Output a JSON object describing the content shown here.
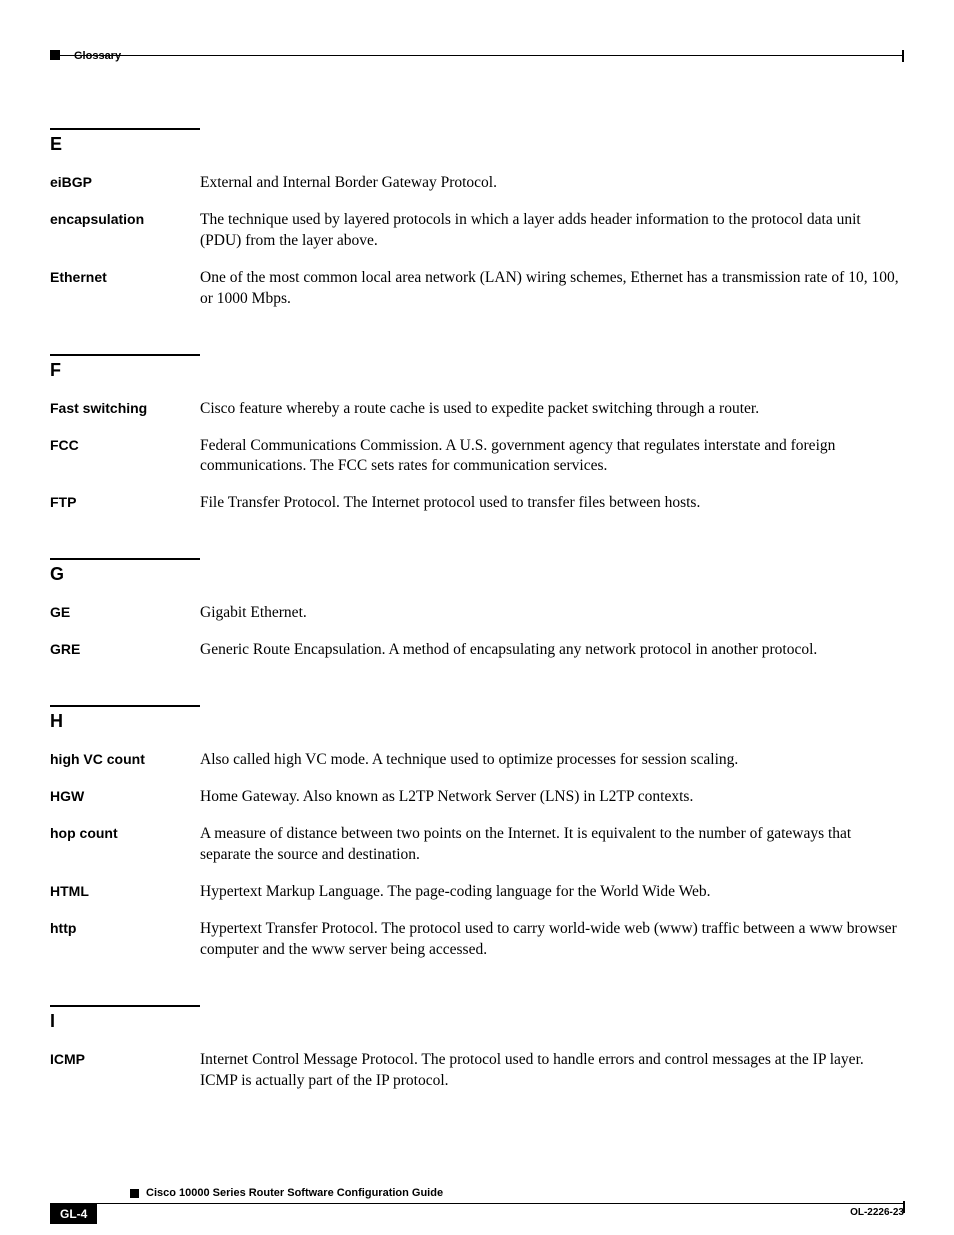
{
  "header": {
    "title": "Glossary"
  },
  "footer": {
    "doc_title": "Cisco 10000 Series Router Software Configuration Guide",
    "page_num": "GL-4",
    "doc_id": "OL-2226-23"
  },
  "sections": [
    {
      "letter": "E",
      "entries": [
        {
          "term": "eiBGP",
          "def": "External and Internal Border Gateway Protocol."
        },
        {
          "term": "encapsulation",
          "def": "The technique used by layered protocols in which a layer adds header information to the protocol data unit (PDU) from the layer above."
        },
        {
          "term": "Ethernet",
          "def": "One of the most common local area network (LAN) wiring schemes, Ethernet has a transmission rate of 10, 100, or 1000 Mbps."
        }
      ]
    },
    {
      "letter": "F",
      "entries": [
        {
          "term": "Fast switching",
          "def": "Cisco feature whereby a route cache is used to expedite packet switching through a router."
        },
        {
          "term": "FCC",
          "def": "Federal Communications Commission. A U.S. government agency that regulates interstate and foreign communications. The FCC sets rates for communication services."
        },
        {
          "term": "FTP",
          "def": "File Transfer Protocol. The Internet protocol used to transfer files between hosts."
        }
      ]
    },
    {
      "letter": "G",
      "entries": [
        {
          "term": "GE",
          "def": "Gigabit Ethernet."
        },
        {
          "term": "GRE",
          "def": "Generic Route Encapsulation. A method of encapsulating any network protocol in another protocol."
        }
      ]
    },
    {
      "letter": "H",
      "entries": [
        {
          "term": "high VC count",
          "def": "Also called high VC mode. A technique used to optimize processes for session scaling."
        },
        {
          "term": "HGW",
          "def": "Home Gateway. Also known as L2TP Network Server (LNS) in L2TP contexts."
        },
        {
          "term": "hop count",
          "def": "A measure of distance between two points on the Internet. It is equivalent to the number of gateways that separate the source and destination."
        },
        {
          "term": "HTML",
          "def": "Hypertext Markup Language. The page-coding language for the World Wide Web."
        },
        {
          "term": "http",
          "def": "Hypertext Transfer Protocol. The protocol used to carry world-wide web (www) traffic between a www browser computer and the www server being accessed."
        }
      ]
    },
    {
      "letter": "I",
      "entries": [
        {
          "term": "ICMP",
          "def": "Internet Control Message Protocol. The protocol used to handle errors and control messages at the IP layer. ICMP is actually part of the IP protocol."
        }
      ]
    }
  ]
}
